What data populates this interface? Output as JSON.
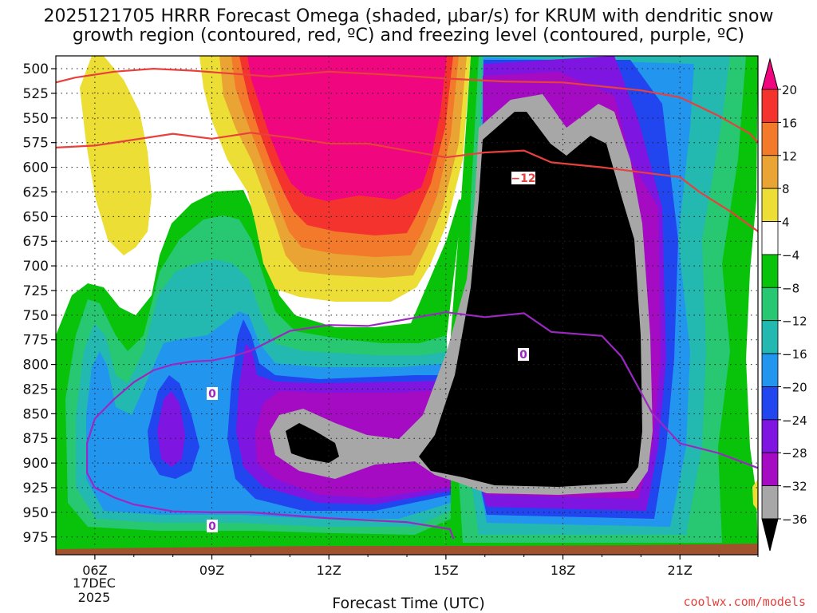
{
  "header": {
    "title_line1": "2025121705 HRRR Forecast Omega (shaded, μbar/s) for KRUM with dendritic snow",
    "title_line2": "growth region (contoured, red, ºC) and freezing level (contoured, purple, ºC)"
  },
  "footer": {
    "credit": "coolwx.com/models"
  },
  "chart_data": {
    "type": "heatmap",
    "xlabel": "Forecast Time (UTC)",
    "x_ticks": [
      "06Z",
      "09Z",
      "12Z",
      "15Z",
      "18Z",
      "21Z"
    ],
    "x_tick_hours": [
      6,
      9,
      12,
      15,
      18,
      21
    ],
    "x_date_label": [
      "17DEC",
      "2025"
    ],
    "xlim_hours": [
      5,
      23
    ],
    "y_ticks": [
      500,
      525,
      550,
      575,
      600,
      625,
      650,
      675,
      700,
      725,
      750,
      775,
      800,
      825,
      850,
      875,
      900,
      925,
      950,
      975
    ],
    "ylim_hPa": [
      487,
      993
    ],
    "y_scale": "pressure, inverted",
    "grid": true,
    "colorbar": {
      "labels": [
        "20",
        "16",
        "12",
        "8",
        "4",
        "−4",
        "−8",
        "−12",
        "−16",
        "−20",
        "−24",
        "−28",
        "−32",
        "−36"
      ],
      "colors": [
        "#f0067e",
        "#f4332e",
        "#f27a2a",
        "#e9a434",
        "#ecde34",
        "#ffffff",
        "#08c30a",
        "#27c871",
        "#23b9b0",
        "#2296ef",
        "#2146f0",
        "#7f15e0",
        "#a40bc3",
        "#a7a7a7",
        "#000000"
      ]
    },
    "contour_labels": {
      "dgz_upper": "−12",
      "freezing_upper": "0",
      "freezing_mid": "0",
      "freezing_lower": "0"
    },
    "dgz_upper_line": {
      "color": "#e8403c",
      "label": "−12",
      "points": [
        [
          5,
          514
        ],
        [
          5.5,
          509
        ],
        [
          6.5,
          503
        ],
        [
          7.5,
          500
        ],
        [
          8.5,
          502
        ],
        [
          9.5,
          505
        ],
        [
          10.5,
          508
        ],
        [
          12,
          503
        ],
        [
          13.5,
          506
        ],
        [
          15,
          510
        ],
        [
          16.5,
          513
        ],
        [
          18,
          514
        ],
        [
          20,
          522
        ],
        [
          21,
          529
        ],
        [
          22,
          548
        ],
        [
          22.8,
          566
        ],
        [
          23,
          575
        ]
      ]
    },
    "dgz_lower_line": {
      "color": "#e8403c",
      "points": [
        [
          5,
          580
        ],
        [
          6,
          578
        ],
        [
          7,
          572
        ],
        [
          8,
          566
        ],
        [
          9,
          571
        ],
        [
          10,
          565
        ],
        [
          11,
          570
        ],
        [
          12,
          576
        ],
        [
          13,
          576
        ],
        [
          14,
          583
        ],
        [
          15,
          590
        ],
        [
          16,
          585
        ],
        [
          17,
          583
        ],
        [
          17.7,
          595
        ],
        [
          19,
          600
        ],
        [
          20,
          605
        ],
        [
          21,
          610
        ],
        [
          21.5,
          625
        ],
        [
          22.3,
          645
        ],
        [
          23,
          665
        ]
      ]
    },
    "freezing_line": {
      "color": "#9b28c0",
      "points": [
        [
          15.2,
          977
        ],
        [
          15.1,
          967
        ],
        [
          14,
          960
        ],
        [
          12,
          956
        ],
        [
          11,
          953
        ],
        [
          10,
          950
        ],
        [
          9,
          950
        ],
        [
          8,
          949
        ],
        [
          7,
          942
        ],
        [
          6.5,
          935
        ],
        [
          6,
          925
        ],
        [
          5.8,
          910
        ],
        [
          5.8,
          880
        ],
        [
          6,
          855
        ],
        [
          6.5,
          835
        ],
        [
          7,
          818
        ],
        [
          7.5,
          806
        ],
        [
          8,
          800
        ],
        [
          8.5,
          797
        ],
        [
          9,
          796
        ],
        [
          9.5,
          792
        ],
        [
          10,
          786
        ],
        [
          11,
          766
        ],
        [
          12,
          760
        ],
        [
          13,
          761
        ],
        [
          14,
          754
        ],
        [
          15,
          747
        ],
        [
          16,
          752
        ],
        [
          17,
          748
        ],
        [
          17.7,
          767
        ],
        [
          19,
          771
        ],
        [
          19.5,
          792
        ],
        [
          20.3,
          850
        ],
        [
          21,
          880
        ],
        [
          22,
          890
        ],
        [
          23,
          905
        ]
      ]
    }
  }
}
